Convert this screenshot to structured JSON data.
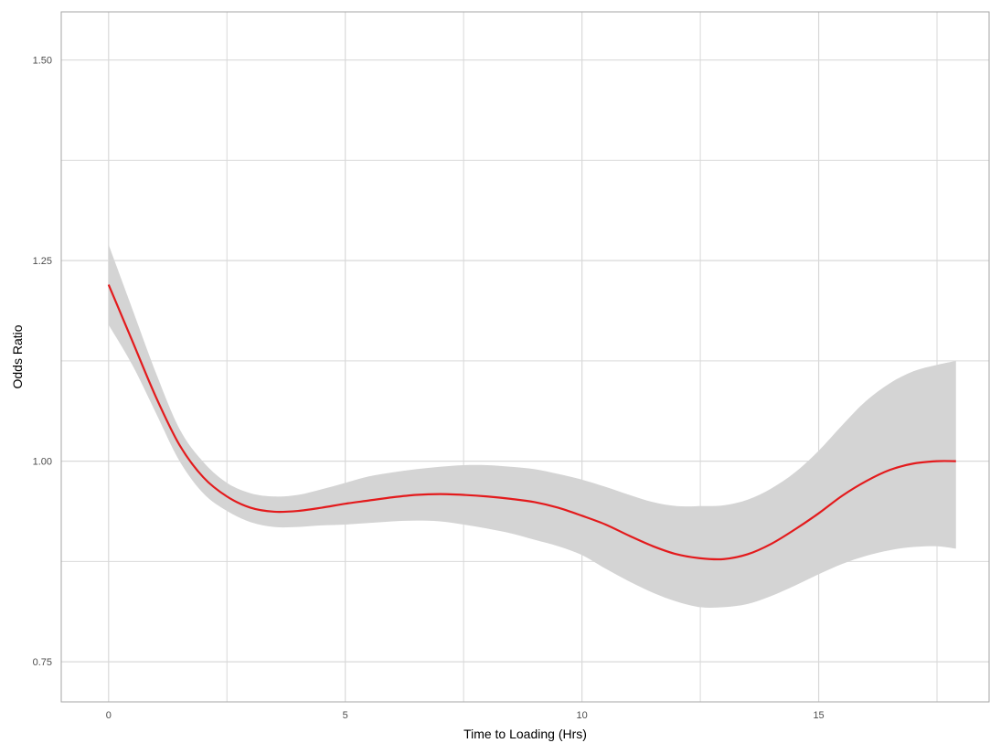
{
  "chart_data": {
    "type": "line",
    "title": "",
    "xlabel": "Time to Loading (Hrs)",
    "ylabel": "Odds Ratio",
    "xlim": [
      -1.0,
      18.6
    ],
    "ylim": [
      0.7,
      1.56
    ],
    "x_major_ticks": [
      0,
      5,
      10,
      15
    ],
    "x_tick_labels": [
      "0",
      "5",
      "10",
      "15"
    ],
    "x_minor_gridlines": [
      2.5,
      7.5,
      12.5,
      17.5
    ],
    "y_major_ticks": [
      0.75,
      1.0,
      1.25,
      1.5
    ],
    "y_tick_labels": [
      "0.75",
      "1.00",
      "1.25",
      "1.50"
    ],
    "y_minor_gridlines": [
      0.875,
      1.125,
      1.375
    ],
    "grid": true,
    "legend": "none",
    "colors": {
      "line": "#e31a1c",
      "band": "#d4d4d4",
      "grid": "#d9d9d9",
      "frame": "#a6a6a6"
    },
    "series": [
      {
        "x": [
          0,
          0.5,
          1,
          1.5,
          2,
          2.5,
          3,
          3.5,
          4,
          4.5,
          5,
          5.5,
          6,
          6.5,
          7,
          7.5,
          8,
          8.5,
          9,
          9.5,
          10,
          10.5,
          11,
          11.5,
          12,
          12.5,
          13,
          13.5,
          14,
          14.5,
          15,
          15.5,
          16,
          16.5,
          17,
          17.5,
          17.9
        ],
        "y": [
          1.22,
          1.15,
          1.08,
          1.02,
          0.98,
          0.956,
          0.942,
          0.937,
          0.938,
          0.942,
          0.947,
          0.951,
          0.955,
          0.958,
          0.959,
          0.958,
          0.956,
          0.953,
          0.949,
          0.942,
          0.932,
          0.921,
          0.907,
          0.894,
          0.884,
          0.879,
          0.878,
          0.884,
          0.897,
          0.915,
          0.935,
          0.957,
          0.975,
          0.989,
          0.997,
          1.0,
          1.0
        ],
        "lower": [
          1.17,
          1.12,
          1.06,
          1.0,
          0.96,
          0.938,
          0.924,
          0.918,
          0.918,
          0.92,
          0.921,
          0.923,
          0.925,
          0.926,
          0.925,
          0.921,
          0.916,
          0.91,
          0.902,
          0.894,
          0.883,
          0.866,
          0.85,
          0.836,
          0.825,
          0.818,
          0.818,
          0.822,
          0.832,
          0.845,
          0.859,
          0.872,
          0.882,
          0.889,
          0.893,
          0.894,
          0.891
        ],
        "upper": [
          1.27,
          1.19,
          1.11,
          1.04,
          0.999,
          0.973,
          0.96,
          0.956,
          0.958,
          0.965,
          0.973,
          0.981,
          0.986,
          0.99,
          0.993,
          0.995,
          0.995,
          0.993,
          0.99,
          0.984,
          0.977,
          0.968,
          0.958,
          0.949,
          0.944,
          0.944,
          0.945,
          0.952,
          0.966,
          0.986,
          1.013,
          1.045,
          1.075,
          1.097,
          1.112,
          1.12,
          1.125
        ]
      }
    ]
  }
}
